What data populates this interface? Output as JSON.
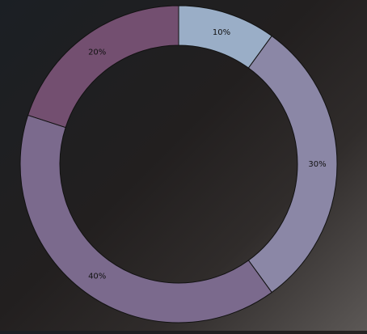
{
  "chart_data": {
    "type": "pie",
    "style": "donut",
    "slices": [
      {
        "label": "10%",
        "value": 10,
        "color": "#9aaec7"
      },
      {
        "label": "30%",
        "value": 30,
        "color": "#8b87a6"
      },
      {
        "label": "40%",
        "value": 40,
        "color": "#7b6a8d"
      },
      {
        "label": "20%",
        "value": 20,
        "color": "#734f70"
      }
    ],
    "start": "top",
    "direction": "clockwise",
    "stroke_color": "#111111"
  }
}
